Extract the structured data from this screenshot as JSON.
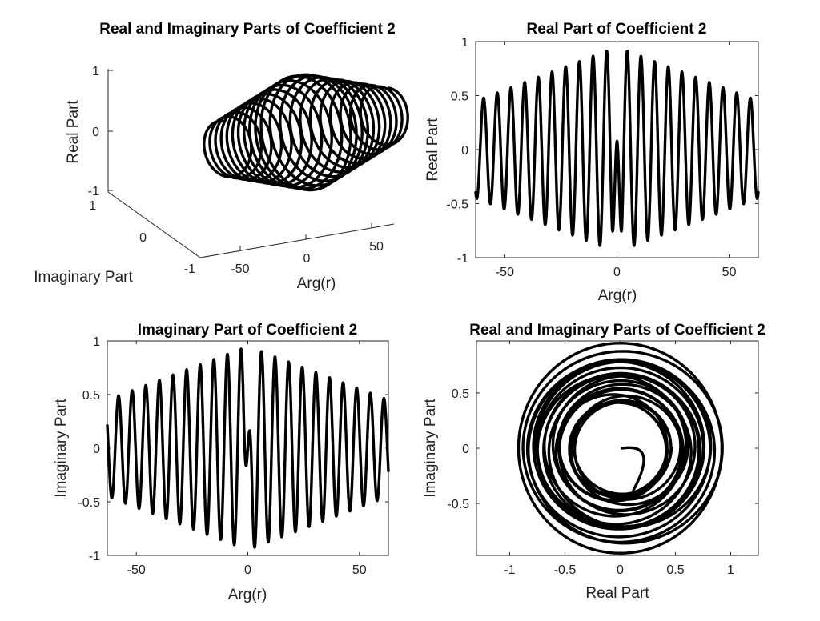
{
  "chart_data": [
    {
      "type": "line3d",
      "title": "Real and Imaginary Parts of Coefficient 2",
      "xlabel": "Arg(r)",
      "ylabel": "Imaginary Part",
      "zlabel": "Real Part",
      "xticks": [
        "-50",
        "0",
        "50"
      ],
      "yticks": [
        "-1",
        "0",
        "1"
      ],
      "zticks": [
        "-1",
        "0",
        "1"
      ],
      "xlim": [
        -63,
        63
      ],
      "ylim": [
        -1,
        1
      ],
      "zlim": [
        -1,
        1
      ],
      "series": [
        {
          "x_range": [
            -63,
            63
          ],
          "turns": 21,
          "amplitude_center": 0.95,
          "amplitude_edge": 0.45
        }
      ]
    },
    {
      "type": "line",
      "title": "Real Part of Coefficient 2",
      "xlabel": "Arg(r)",
      "ylabel": "Real Part",
      "xticks": [
        "-50",
        "0",
        "50"
      ],
      "yticks": [
        "-1",
        "-0.5",
        "0",
        "0.5",
        "1"
      ],
      "xlim": [
        -63,
        63
      ],
      "ylim": [
        -1,
        1
      ],
      "series": [
        {
          "component": "real",
          "x_range": [
            -63,
            63
          ],
          "period": 6.1,
          "amplitude_center": 0.95,
          "amplitude_edge": 0.45
        }
      ]
    },
    {
      "type": "line",
      "title": "Imaginary Part of Coefficient 2",
      "xlabel": "Arg(r)",
      "ylabel": "Imaginary Part",
      "xticks": [
        "-50",
        "0",
        "50"
      ],
      "yticks": [
        "-1",
        "-0.5",
        "0",
        "0.5",
        "1"
      ],
      "xlim": [
        -63,
        63
      ],
      "ylim": [
        -1,
        1
      ],
      "series": [
        {
          "component": "imaginary",
          "x_range": [
            -63,
            63
          ],
          "period": 6.1,
          "amplitude_center": 0.95,
          "amplitude_edge": 0.45
        }
      ]
    },
    {
      "type": "line",
      "title": "Real and Imaginary Parts of Coefficient 2",
      "xlabel": "Real Part",
      "ylabel": "Imaginary Part",
      "xticks": [
        "-1",
        "-0.5",
        "0",
        "0.5",
        "1"
      ],
      "yticks": [
        "-0.5",
        "0",
        "0.5"
      ],
      "xlim": [
        -1.3,
        1.25
      ],
      "ylim": [
        -0.97,
        0.97
      ],
      "series": [
        {
          "component": "real-vs-imaginary",
          "radius_min": 0.42,
          "radius_max": 0.95
        }
      ]
    }
  ]
}
